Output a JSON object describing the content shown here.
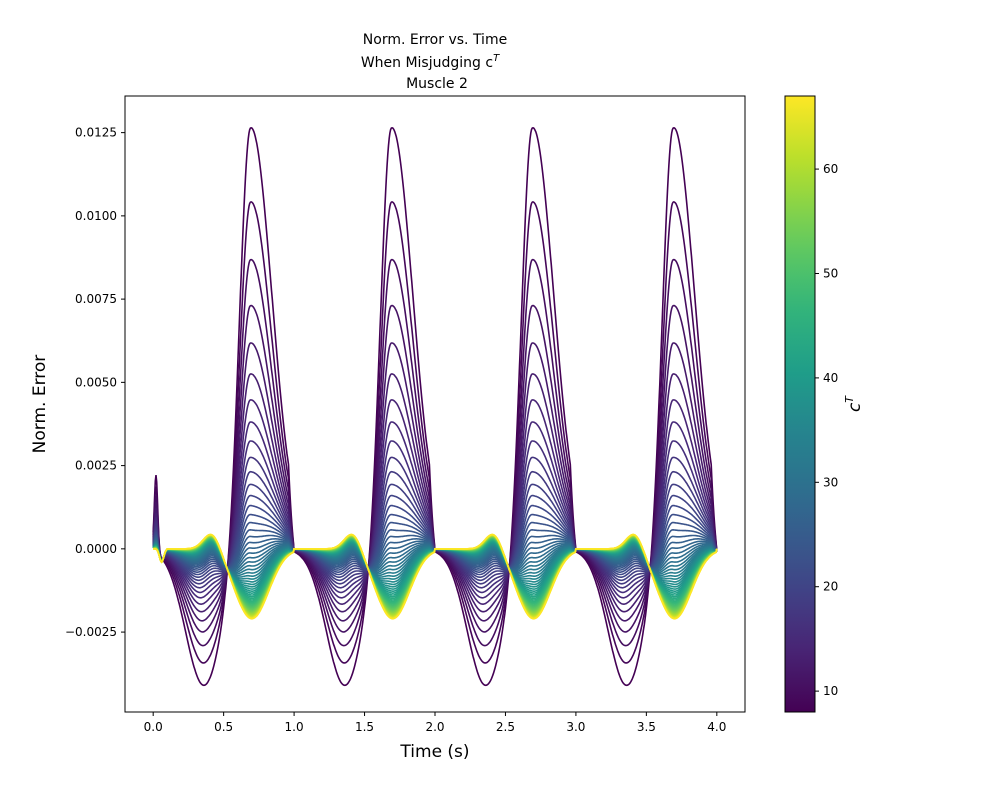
{
  "chart_data": {
    "type": "line",
    "title_lines": [
      "Norm. Error vs. Time",
      "When Misjudging c",
      "Muscle 2"
    ],
    "title_superscript": "T",
    "xlabel": "Time (s)",
    "ylabel": "Norm. Error",
    "xlim": [
      -0.2,
      4.2
    ],
    "ylim": [
      -0.0049,
      0.0136
    ],
    "x_ticks": [
      0.0,
      0.5,
      1.0,
      1.5,
      2.0,
      2.5,
      3.0,
      3.5,
      4.0
    ],
    "x_tick_labels": [
      "0.0",
      "0.5",
      "1.0",
      "1.5",
      "2.0",
      "2.5",
      "3.0",
      "3.5",
      "4.0"
    ],
    "y_ticks": [
      -0.0025,
      0.0,
      0.0025,
      0.005,
      0.0075,
      0.01,
      0.0125
    ],
    "y_tick_labels": [
      "−0.0025",
      "0.0000",
      "0.0025",
      "0.0050",
      "0.0075",
      "0.0100",
      "0.0125"
    ],
    "grid": false,
    "colormap": "viridis",
    "colorbar": {
      "label": "c",
      "label_superscript": "T",
      "range": [
        8,
        67
      ],
      "ticks": [
        10,
        20,
        30,
        40,
        50,
        60
      ],
      "tick_labels": [
        "10",
        "20",
        "30",
        "40",
        "50",
        "60"
      ]
    },
    "series_family": {
      "parameter": "c^T",
      "count": 60,
      "c_min": 8,
      "c_max": 67,
      "cycle_period": 1.0,
      "cycles_start": [
        0.0,
        1.0,
        2.0,
        3.0
      ],
      "t_end": 4.0,
      "peak_positive_max": 0.0128,
      "peak_positive_time": 0.69,
      "trough_negative_min": -0.0041,
      "trough_negative_time": 0.36,
      "initial_spike_max": 0.00235,
      "initial_spike_time": 0.02,
      "high_c_bump": 0.00055,
      "high_c_trough": -0.0021
    }
  }
}
